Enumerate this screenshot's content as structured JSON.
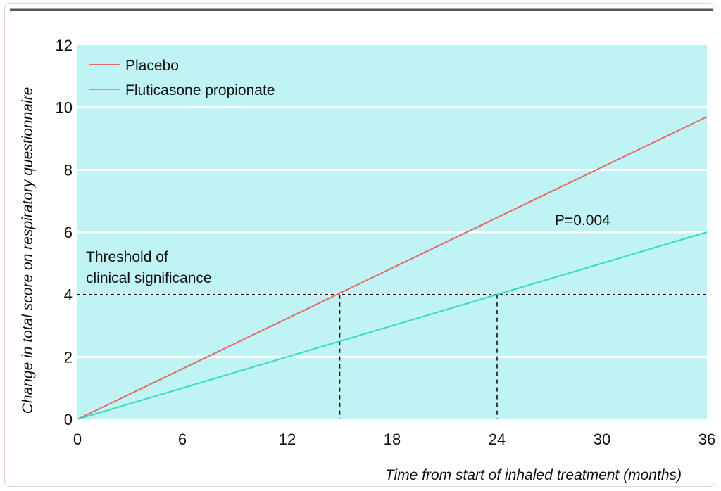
{
  "chart_data": {
    "type": "line",
    "xlabel": "Time from start of inhaled treatment (months)",
    "ylabel": "Change in total score on respiratory questionnaire",
    "xlim": [
      0,
      36
    ],
    "ylim": [
      0,
      12
    ],
    "x_ticks": [
      "0",
      "6",
      "12",
      "18",
      "24",
      "30",
      "36"
    ],
    "y_ticks": [
      "0",
      "2",
      "4",
      "6",
      "8",
      "10",
      "12"
    ],
    "grid": "horizontal",
    "legend_position": "top-left",
    "background_color": "#bff3f4",
    "series": [
      {
        "name": "Placebo",
        "color": "#e8686a",
        "x": [
          0,
          36
        ],
        "y": [
          0,
          9.7
        ]
      },
      {
        "name": "Fluticasone propionate",
        "color": "#33dcc0",
        "x": [
          0,
          36
        ],
        "y": [
          0,
          6.0
        ]
      }
    ],
    "threshold": {
      "y": 4,
      "label_line1": "Threshold of",
      "label_line2": "clinical significance"
    },
    "crossings": [
      {
        "x": 15
      },
      {
        "x": 24
      }
    ],
    "annotation": "P=0.004"
  }
}
